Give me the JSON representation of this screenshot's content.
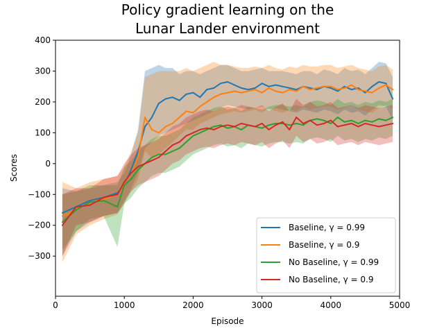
{
  "chart_data": {
    "type": "line",
    "title_lines": [
      "Policy gradient learning on the",
      "Lunar Lander environment"
    ],
    "xlabel": "Episode",
    "ylabel": "Scores",
    "xlim": [
      0,
      5000
    ],
    "ylim": [
      -430,
      400
    ],
    "xticks": [
      0,
      1000,
      2000,
      3000,
      4000,
      5000
    ],
    "yticks": [
      -300,
      -200,
      -100,
      0,
      100,
      200,
      300,
      400
    ],
    "ytick_labels": [
      "−300",
      "−200",
      "−100",
      "0",
      "100",
      "200",
      "300",
      "400"
    ],
    "grid": false,
    "legend_position": "lower right",
    "x": [
      100,
      300,
      500,
      700,
      900,
      1000,
      1100,
      1200,
      1300,
      1400,
      1500,
      1600,
      1700,
      1800,
      1900,
      2000,
      2100,
      2200,
      2300,
      2400,
      2500,
      2600,
      2700,
      2800,
      2900,
      3000,
      3100,
      3200,
      3300,
      3400,
      3500,
      3600,
      3700,
      3800,
      3900,
      4000,
      4100,
      4200,
      4300,
      4400,
      4500,
      4600,
      4700,
      4800,
      4900
    ],
    "series": [
      {
        "name": "Baseline, γ = 0.99",
        "color": "#1f77b4",
        "values": [
          -160,
          -140,
          -120,
          -110,
          -95,
          -70,
          -20,
          40,
          120,
          150,
          195,
          210,
          215,
          205,
          225,
          230,
          215,
          240,
          245,
          260,
          265,
          255,
          245,
          240,
          245,
          260,
          250,
          255,
          250,
          245,
          240,
          250,
          245,
          240,
          250,
          245,
          235,
          250,
          240,
          245,
          230,
          250,
          265,
          260,
          210
        ],
        "lower": [
          -300,
          -220,
          -190,
          -170,
          -160,
          -130,
          -80,
          -30,
          50,
          70,
          90,
          100,
          110,
          120,
          130,
          140,
          150,
          160,
          170,
          180,
          190,
          185,
          180,
          175,
          180,
          185,
          175,
          180,
          175,
          170,
          165,
          175,
          170,
          165,
          175,
          170,
          160,
          175,
          165,
          170,
          155,
          175,
          190,
          185,
          140
        ],
        "upper": [
          -80,
          -90,
          -80,
          -70,
          -60,
          -30,
          30,
          110,
          300,
          310,
          320,
          310,
          310,
          290,
          300,
          300,
          290,
          300,
          310,
          320,
          320,
          310,
          300,
          300,
          305,
          310,
          300,
          300,
          300,
          295,
          290,
          300,
          300,
          290,
          305,
          300,
          290,
          310,
          300,
          305,
          290,
          310,
          330,
          325,
          280
        ]
      },
      {
        "name": "Baseline, γ = 0.9",
        "color": "#ff7f0e",
        "values": [
          -170,
          -150,
          -125,
          -115,
          -100,
          -65,
          -30,
          20,
          150,
          110,
          100,
          120,
          130,
          150,
          170,
          165,
          185,
          200,
          215,
          225,
          230,
          235,
          230,
          235,
          240,
          230,
          245,
          235,
          230,
          240,
          235,
          250,
          240,
          245,
          250,
          250,
          240,
          245,
          255,
          240,
          235,
          230,
          245,
          255,
          240
        ],
        "lower": [
          -320,
          -230,
          -200,
          -180,
          -165,
          -130,
          -90,
          -50,
          40,
          20,
          30,
          50,
          70,
          90,
          110,
          110,
          130,
          140,
          150,
          160,
          165,
          170,
          165,
          170,
          175,
          165,
          180,
          170,
          165,
          175,
          170,
          185,
          175,
          180,
          185,
          185,
          175,
          180,
          190,
          175,
          170,
          165,
          180,
          190,
          175
        ],
        "upper": [
          -60,
          -80,
          -60,
          -50,
          -40,
          -10,
          40,
          100,
          280,
          290,
          300,
          300,
          300,
          300,
          310,
          300,
          310,
          320,
          330,
          320,
          320,
          315,
          310,
          310,
          315,
          310,
          320,
          310,
          305,
          315,
          310,
          320,
          315,
          315,
          320,
          320,
          310,
          315,
          320,
          310,
          305,
          300,
          315,
          320,
          305
        ]
      },
      {
        "name": "No Baseline, γ = 0.99",
        "color": "#2ca02c",
        "values": [
          -190,
          -150,
          -125,
          -120,
          -140,
          -70,
          -50,
          -20,
          0,
          20,
          30,
          30,
          40,
          50,
          70,
          90,
          100,
          110,
          120,
          125,
          115,
          120,
          110,
          125,
          120,
          115,
          125,
          130,
          130,
          125,
          130,
          125,
          140,
          145,
          140,
          130,
          150,
          135,
          140,
          130,
          140,
          135,
          145,
          140,
          150
        ],
        "lower": [
          -280,
          -220,
          -180,
          -170,
          -270,
          -130,
          -110,
          -80,
          -60,
          -40,
          -30,
          -30,
          -20,
          -10,
          10,
          30,
          40,
          50,
          60,
          65,
          55,
          60,
          50,
          65,
          60,
          55,
          65,
          70,
          70,
          65,
          70,
          65,
          80,
          85,
          80,
          70,
          90,
          75,
          80,
          70,
          80,
          75,
          85,
          80,
          90
        ],
        "upper": [
          -100,
          -90,
          -70,
          -70,
          -70,
          -10,
          10,
          40,
          60,
          80,
          90,
          90,
          100,
          110,
          130,
          150,
          160,
          170,
          180,
          185,
          175,
          180,
          170,
          185,
          180,
          175,
          185,
          190,
          190,
          185,
          190,
          185,
          200,
          205,
          200,
          190,
          210,
          195,
          200,
          190,
          200,
          195,
          205,
          200,
          210
        ]
      },
      {
        "name": "No Baseline, γ = 0.9",
        "color": "#d62728",
        "values": [
          -200,
          -140,
          -135,
          -110,
          -100,
          -60,
          -30,
          -10,
          0,
          10,
          20,
          40,
          60,
          70,
          90,
          100,
          110,
          115,
          110,
          120,
          125,
          120,
          130,
          125,
          120,
          130,
          110,
          125,
          135,
          110,
          150,
          130,
          140,
          125,
          130,
          140,
          120,
          125,
          130,
          120,
          130,
          125,
          120,
          125,
          130
        ],
        "lower": [
          -300,
          -200,
          -190,
          -170,
          -160,
          -120,
          -90,
          -70,
          -60,
          -50,
          -40,
          -20,
          0,
          10,
          30,
          40,
          50,
          55,
          50,
          60,
          65,
          60,
          70,
          65,
          60,
          70,
          50,
          65,
          75,
          50,
          90,
          70,
          80,
          65,
          70,
          80,
          60,
          65,
          70,
          60,
          70,
          65,
          60,
          65,
          70
        ],
        "upper": [
          -100,
          -80,
          -80,
          -50,
          -40,
          0,
          30,
          50,
          60,
          70,
          80,
          100,
          120,
          130,
          150,
          160,
          170,
          175,
          170,
          180,
          185,
          180,
          190,
          185,
          180,
          190,
          170,
          185,
          195,
          170,
          210,
          190,
          200,
          185,
          190,
          200,
          180,
          185,
          190,
          180,
          190,
          185,
          180,
          185,
          190
        ]
      }
    ]
  }
}
